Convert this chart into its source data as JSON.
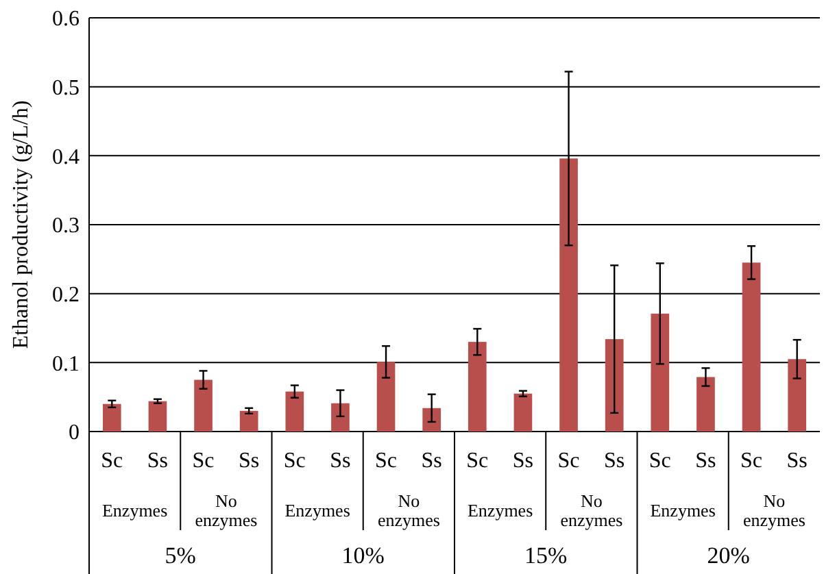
{
  "chart_data": {
    "type": "bar",
    "ylabel": "Ethanol productivity (g/L/h)",
    "categories": [
      "Sc",
      "Ss",
      "Sc",
      "Ss",
      "Sc",
      "Ss",
      "Sc",
      "Ss",
      "Sc",
      "Ss",
      "Sc",
      "Ss",
      "Sc",
      "Ss",
      "Sc",
      "Ss"
    ],
    "values": [
      0.04,
      0.044,
      0.075,
      0.03,
      0.058,
      0.041,
      0.101,
      0.034,
      0.13,
      0.055,
      0.396,
      0.134,
      0.171,
      0.079,
      0.245,
      0.105
    ],
    "errors": [
      0.005,
      0.003,
      0.013,
      0.004,
      0.009,
      0.019,
      0.023,
      0.02,
      0.019,
      0.004,
      0.126,
      0.107,
      0.073,
      0.013,
      0.024,
      0.028
    ],
    "color": "#b94f4c",
    "ylim": [
      0,
      0.6
    ],
    "yticks": [
      0,
      0.1,
      0.2,
      0.3,
      0.4,
      0.5,
      0.6
    ],
    "grid": "y",
    "annotations": [
      "Enzymes",
      "No enzymes",
      "Enzymes",
      "No enzymes",
      "Enzymes",
      "No enzymes",
      "Enzymes",
      "No enzymes",
      "5%",
      "10%",
      "15%",
      "20%"
    ]
  }
}
